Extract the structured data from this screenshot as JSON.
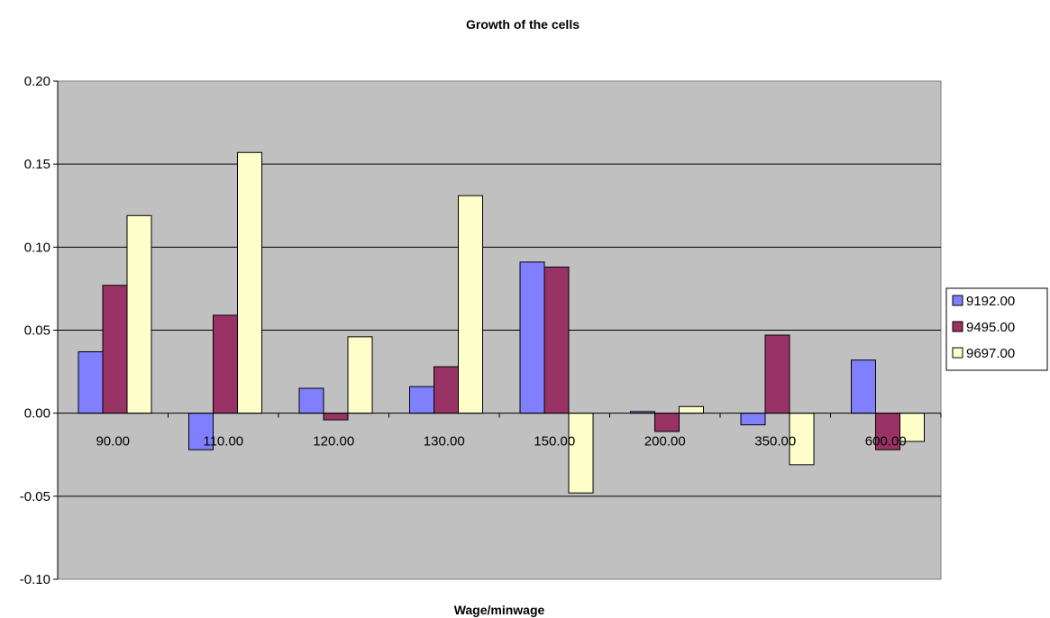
{
  "chart_data": {
    "type": "bar",
    "title": "Growth of the cells",
    "xlabel": "Wage/minwage",
    "ylabel": "",
    "ylim": [
      -0.1,
      0.2
    ],
    "yticks": [
      "-0.10",
      "-0.05",
      "0.00",
      "0.05",
      "0.10",
      "0.15",
      "0.20"
    ],
    "categories": [
      "90.00",
      "110.00",
      "120.00",
      "130.00",
      "150.00",
      "200.00",
      "350.00",
      "600.00"
    ],
    "series": [
      {
        "name": "9192.00",
        "color": "#8080ff",
        "values": [
          0.037,
          -0.022,
          0.015,
          0.016,
          0.091,
          0.001,
          -0.007,
          0.032
        ]
      },
      {
        "name": "9495.00",
        "color": "#993366",
        "values": [
          0.077,
          0.059,
          -0.004,
          0.028,
          0.088,
          -0.011,
          0.047,
          -0.022
        ]
      },
      {
        "name": "9697.00",
        "color": "#ffffcc",
        "values": [
          0.119,
          0.157,
          0.046,
          0.131,
          -0.048,
          0.004,
          -0.031,
          -0.017
        ]
      }
    ],
    "grid": true,
    "plot_background": "#c0c0c0",
    "legend_position": "right"
  }
}
